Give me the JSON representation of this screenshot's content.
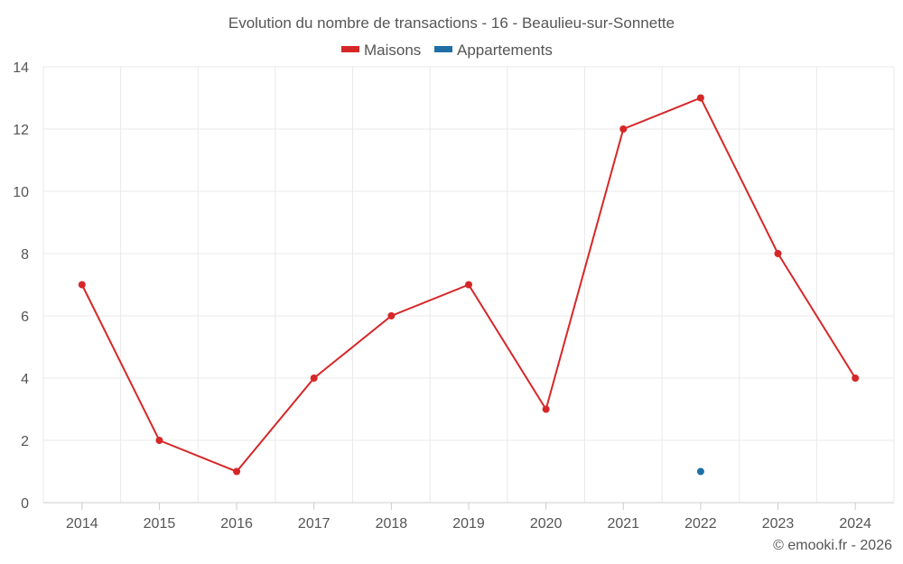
{
  "chart_data": {
    "type": "line",
    "title": "Evolution du nombre de transactions - 16 - Beaulieu-sur-Sonnette",
    "categories": [
      "2014",
      "2015",
      "2016",
      "2017",
      "2018",
      "2019",
      "2020",
      "2021",
      "2022",
      "2023",
      "2024"
    ],
    "series": [
      {
        "name": "Maisons",
        "color": "#d62728",
        "values": [
          7,
          2,
          1,
          4,
          6,
          7,
          3,
          12,
          13,
          8,
          4
        ]
      },
      {
        "name": "Appartements",
        "color": "#1f6fa5",
        "values": [
          null,
          null,
          null,
          null,
          null,
          null,
          null,
          null,
          1,
          null,
          null
        ]
      }
    ],
    "y_ticks": [
      "0",
      "2",
      "4",
      "6",
      "8",
      "10",
      "12",
      "14"
    ],
    "ylim": [
      0,
      14
    ],
    "xlabel": "",
    "ylabel": "",
    "legend_position": "top-center",
    "grid": true
  },
  "credit": "© emooki.fr - 2026"
}
